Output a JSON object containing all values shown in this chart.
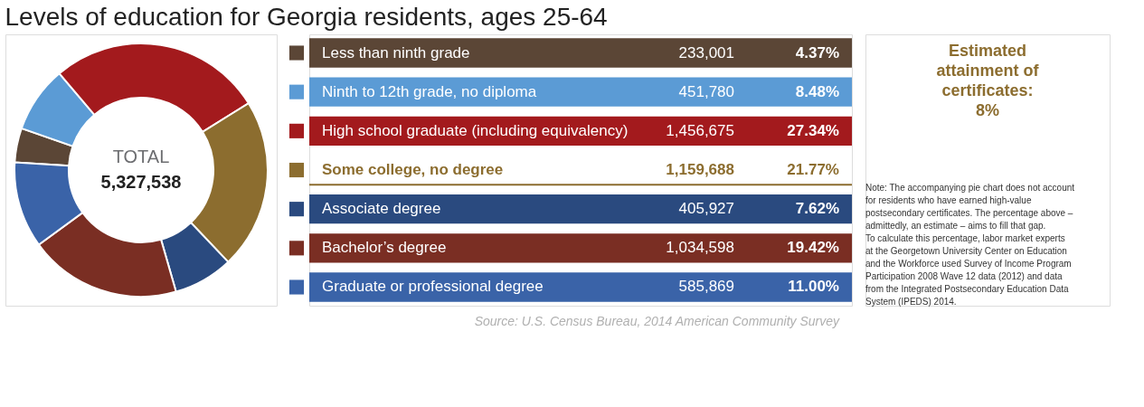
{
  "chart_data": {
    "type": "donut",
    "title": "Levels of education for Georgia residents, ages 25-64",
    "categories": [
      "Less than ninth grade",
      "Ninth to 12th grade, no diploma",
      "High school graduate (including equivalency)",
      "Some college, no degree",
      "Associate degree",
      "Bachelor’s degree",
      "Graduate or professional degree"
    ],
    "values": [
      4.37,
      8.48,
      27.34,
      21.77,
      7.62,
      19.42,
      11.0
    ],
    "value_labels": [
      "4.37%",
      "8.48%",
      "27.34%",
      "21.77%",
      "7.62%",
      "19.42%",
      "11.00%"
    ],
    "legend": "right",
    "colors": [
      "#5b4636",
      "#5b9bd5",
      "#a31a1d",
      "#8c6d2f",
      "#2a4a7f",
      "#7a2e23",
      "#3a63a8"
    ],
    "annotations": [
      "TOTAL",
      "5,327,538",
      "Estimated attainment of certificates: 8%",
      "Source: U.S. Census Bureau, 2014 American Community Survey",
      "Note: The accompanying pie chart does not account for residents who have earned high-value postsecondary certificates. The percentage above – admittedly, an estimate – aims to fill that gap. To calculate this percentage, labor market experts at the Georgetown University Center on Education and the Workforce used Survey of Income Program Participation 2008 Wave 12 data (2012) and data from the Integrated Postsecondary Education Data System (IPEDS) 2014.",
      "233,001",
      "451,780",
      "1,456,675",
      "1,159,688",
      "405,927",
      "1,034,598",
      "585,869"
    ]
  }
}
